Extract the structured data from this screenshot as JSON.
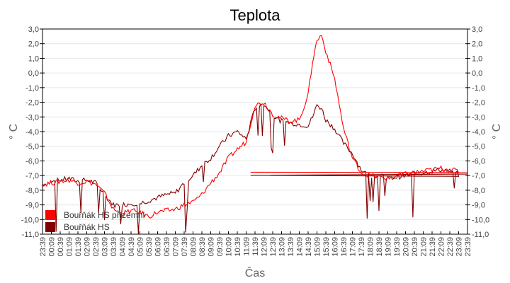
{
  "chart_data": {
    "type": "line",
    "title": "Teplota",
    "xlabel": "Čas",
    "ylabel": "° C",
    "ylim": [
      -11.0,
      3.0
    ],
    "y_ticks": [
      "3,0",
      "2,0",
      "1,0",
      "0,0",
      "-1,0",
      "-2,0",
      "-3,0",
      "-4,0",
      "-5,0",
      "-6,0",
      "-7,0",
      "-8,0",
      "-9,0",
      "-10,0",
      "-11,0"
    ],
    "x_ticks": [
      "23:39",
      "00:09",
      "00:39",
      "01:09",
      "01:39",
      "02:09",
      "02:39",
      "03:09",
      "03:39",
      "04:09",
      "04:39",
      "05:09",
      "05:39",
      "06:09",
      "06:39",
      "07:09",
      "07:39",
      "08:09",
      "08:39",
      "09:09",
      "09:39",
      "10:09",
      "10:39",
      "11:09",
      "11:39",
      "12:09",
      "12:39",
      "13:09",
      "13:39",
      "14:09",
      "14:39",
      "15:09",
      "15:39",
      "16:09",
      "16:39",
      "17:09",
      "17:39",
      "18:09",
      "18:39",
      "19:09",
      "19:39",
      "20:09",
      "20:39",
      "21:09",
      "21:39",
      "22:09",
      "22:39",
      "23:09",
      "23:39"
    ],
    "grid": true,
    "legend_position": "lower-left-inside",
    "series": [
      {
        "name": "Bouřňák HS přízemní",
        "color": "#ff0000",
        "x": [
          "23:39",
          "00:39",
          "01:09",
          "01:39",
          "02:09",
          "02:39",
          "03:09",
          "03:39",
          "04:09",
          "04:39",
          "05:09",
          "05:39",
          "06:09",
          "06:39",
          "07:09",
          "07:39",
          "08:09",
          "08:39",
          "09:09",
          "09:39",
          "10:09",
          "10:39",
          "11:09",
          "11:39",
          "12:09",
          "12:39",
          "13:09",
          "13:39",
          "14:09",
          "14:39",
          "14:54",
          "15:09",
          "15:24",
          "15:39",
          "16:09",
          "16:39",
          "17:09",
          "17:39",
          "18:09",
          "18:39",
          "19:09",
          "19:39",
          "20:09",
          "20:39",
          "21:09",
          "21:39",
          "22:09",
          "22:39",
          "23:09",
          "23:39"
        ],
        "values": [
          -7.6,
          -7.4,
          -7.3,
          -7.5,
          -7.4,
          -7.6,
          -8.2,
          -9.3,
          -9.6,
          -9.4,
          -9.5,
          -9.8,
          -9.5,
          -9.4,
          -9.3,
          -9.0,
          -8.8,
          -8.3,
          -7.5,
          -6.8,
          -5.8,
          -5.2,
          -4.7,
          -2.2,
          -2.0,
          -2.8,
          -3.1,
          -3.3,
          -3.2,
          -1.5,
          0.8,
          2.2,
          2.6,
          1.5,
          -0.4,
          -3.8,
          -5.8,
          -6.8,
          -7.0,
          -7.1,
          -7.2,
          -7.0,
          -6.9,
          -6.8,
          -6.7,
          -6.6,
          -6.5,
          -6.6,
          -6.7,
          -6.8
        ]
      },
      {
        "name": "Bouřňák HS",
        "color": "#800000",
        "x": [
          "23:39",
          "00:39",
          "01:09",
          "01:39",
          "02:09",
          "02:39",
          "03:09",
          "03:39",
          "04:09",
          "04:39",
          "05:09",
          "05:39",
          "06:09",
          "06:39",
          "07:09",
          "07:39",
          "08:09",
          "08:39",
          "09:09",
          "09:39",
          "10:09",
          "10:39",
          "11:09",
          "11:39",
          "12:09",
          "12:39",
          "13:09",
          "13:39",
          "14:09",
          "14:39",
          "14:54",
          "15:09",
          "15:24",
          "15:39",
          "16:09",
          "16:39",
          "17:09",
          "17:39",
          "18:09",
          "18:39",
          "19:09",
          "19:39",
          "20:09",
          "20:39",
          "21:09",
          "21:39",
          "22:09",
          "22:39",
          "23:09",
          "23:39"
        ],
        "values": [
          -7.6,
          -7.3,
          -7.2,
          -7.4,
          -7.3,
          -7.5,
          -8.3,
          -9.0,
          -9.0,
          -8.9,
          -8.9,
          -8.7,
          -8.5,
          -8.3,
          -8.2,
          -7.5,
          -7.0,
          -6.3,
          -5.8,
          -5.0,
          -4.3,
          -4.0,
          -4.5,
          -2.4,
          -2.1,
          -2.9,
          -3.3,
          -3.4,
          -3.5,
          -3.6,
          -3.0,
          -2.2,
          -2.4,
          -3.2,
          -3.8,
          -4.8,
          -5.5,
          -6.6,
          -7.1,
          -7.0,
          -7.2,
          -7.1,
          -7.0,
          -6.9,
          -6.8,
          -6.7,
          -6.6,
          -6.7,
          -6.9,
          -6.9
        ]
      }
    ]
  }
}
